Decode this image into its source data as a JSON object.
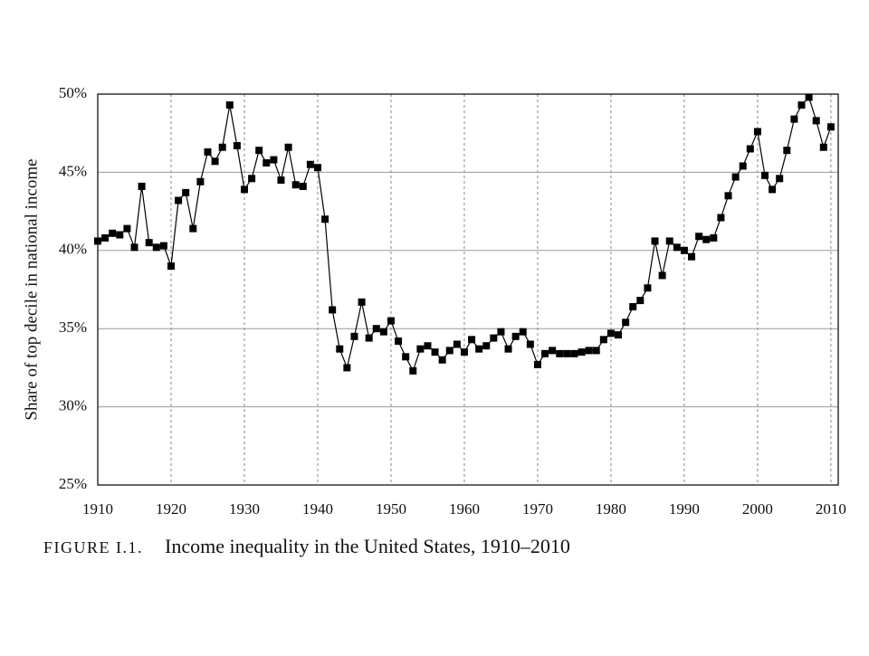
{
  "chart_data": {
    "type": "line",
    "ylabel": "Share of top decile in national income",
    "caption_label": "FIGURE I.1.",
    "title": "Income inequality in the United States, 1910–2010",
    "x": [
      1910,
      1911,
      1912,
      1913,
      1914,
      1915,
      1916,
      1917,
      1918,
      1919,
      1920,
      1921,
      1922,
      1923,
      1924,
      1925,
      1926,
      1927,
      1928,
      1929,
      1930,
      1931,
      1932,
      1933,
      1934,
      1935,
      1936,
      1937,
      1938,
      1939,
      1940,
      1941,
      1942,
      1943,
      1944,
      1945,
      1946,
      1947,
      1948,
      1949,
      1950,
      1951,
      1952,
      1953,
      1954,
      1955,
      1956,
      1957,
      1958,
      1959,
      1960,
      1961,
      1962,
      1963,
      1964,
      1965,
      1966,
      1967,
      1968,
      1969,
      1970,
      1971,
      1972,
      1973,
      1974,
      1975,
      1976,
      1977,
      1978,
      1979,
      1980,
      1981,
      1982,
      1983,
      1984,
      1985,
      1986,
      1987,
      1988,
      1989,
      1990,
      1991,
      1992,
      1993,
      1994,
      1995,
      1996,
      1997,
      1998,
      1999,
      2000,
      2001,
      2002,
      2003,
      2004,
      2005,
      2006,
      2007,
      2008,
      2009,
      2010
    ],
    "series": [
      {
        "color": "#000000",
        "values": [
          40.6,
          40.8,
          41.1,
          41.0,
          41.4,
          40.2,
          44.1,
          40.5,
          40.2,
          40.3,
          39.0,
          43.2,
          43.7,
          41.4,
          44.4,
          46.3,
          45.7,
          46.6,
          49.3,
          46.7,
          43.9,
          44.6,
          46.4,
          45.6,
          45.8,
          44.5,
          46.6,
          44.2,
          44.1,
          45.5,
          45.3,
          42.0,
          36.2,
          33.7,
          32.5,
          34.5,
          36.7,
          34.4,
          35.0,
          34.8,
          35.5,
          34.2,
          33.2,
          32.3,
          33.7,
          33.9,
          33.5,
          33.0,
          33.6,
          34.0,
          33.5,
          34.3,
          33.7,
          33.9,
          34.4,
          34.8,
          33.7,
          34.5,
          34.8,
          34.0,
          32.7,
          33.4,
          33.6,
          33.4,
          33.4,
          33.4,
          33.5,
          33.6,
          33.6,
          34.3,
          34.7,
          34.6,
          35.4,
          36.4,
          36.8,
          37.6,
          40.6,
          38.4,
          40.6,
          40.2,
          40.0,
          39.6,
          40.9,
          40.7,
          40.8,
          42.1,
          43.5,
          44.7,
          45.4,
          46.5,
          47.6,
          44.8,
          43.9,
          44.6,
          46.4,
          48.4,
          49.3,
          49.8,
          48.3,
          46.6,
          47.9
        ]
      }
    ],
    "xlim": [
      1910,
      2011
    ],
    "xticks": [
      1910,
      1920,
      1930,
      1940,
      1950,
      1960,
      1970,
      1980,
      1990,
      2000,
      2010
    ],
    "ylim": [
      25,
      50
    ],
    "yticks": [
      {
        "value": 25,
        "label": "25%"
      },
      {
        "value": 30,
        "label": "30%"
      },
      {
        "value": 35,
        "label": "35%"
      },
      {
        "value": 40,
        "label": "40%"
      },
      {
        "value": 45,
        "label": "45%"
      },
      {
        "value": 50,
        "label": "50%"
      }
    ],
    "grid": true
  }
}
